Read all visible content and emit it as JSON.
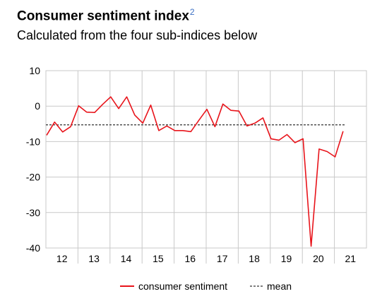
{
  "title": "Consumer sentiment index",
  "title_sup": "2",
  "subtitle": "Calculated from the four sub-indices below",
  "chart_data": {
    "type": "line",
    "x_ticks": [
      "12",
      "13",
      "14",
      "15",
      "16",
      "17",
      "18",
      "19",
      "20",
      "21"
    ],
    "y_ticks": [
      "10",
      "0",
      "-10",
      "-20",
      "-30",
      "-40"
    ],
    "ylim": [
      -40,
      10
    ],
    "grid": true,
    "legend_position": "bottom",
    "series": [
      {
        "name": "consumer sentiment",
        "color": "#e8141b",
        "values": [
          -8.2,
          -4.5,
          -7.3,
          -5.8,
          0.1,
          -1.7,
          -1.8,
          0.5,
          2.6,
          -0.7,
          2.6,
          -2.5,
          -4.8,
          0.3,
          -6.9,
          -5.6,
          -6.9,
          -6.9,
          -7.2,
          -4.0,
          -0.9,
          -5.8,
          0.6,
          -1.2,
          -1.4,
          -5.6,
          -4.8,
          -3.3,
          -9.2,
          -9.6,
          -8.0,
          -10.3,
          -9.2,
          -39.5,
          -12.1,
          -12.8,
          -14.3,
          -7.1
        ]
      },
      {
        "name": "mean",
        "color": "#000000",
        "style": "dashed",
        "value": -5.3
      }
    ]
  }
}
